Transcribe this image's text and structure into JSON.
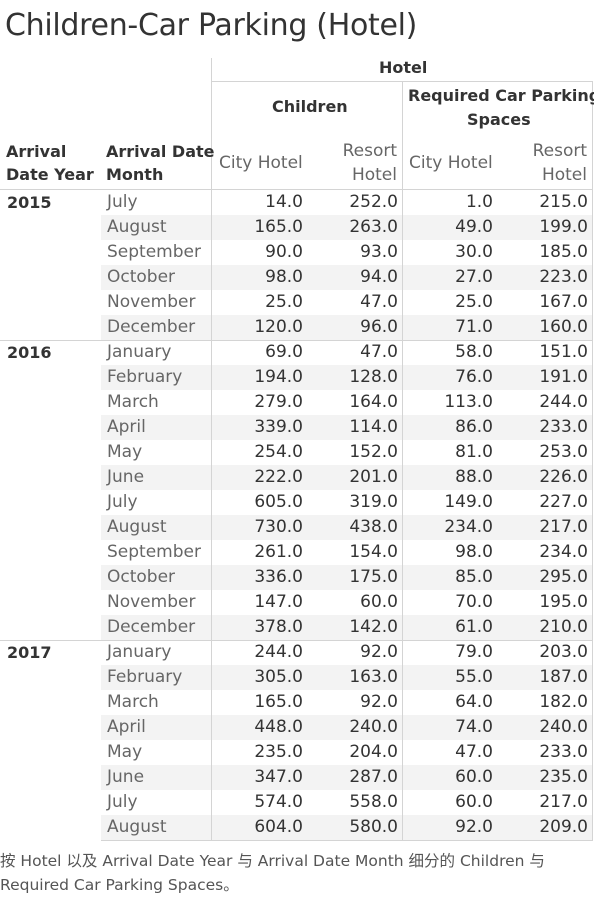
{
  "title": "Children-Car Parking (Hotel)",
  "header": {
    "hotel": "Hotel",
    "children": "Children",
    "parking_l1": "Required Car Parking",
    "parking_l2": "Spaces",
    "year_l1": "Arrival",
    "year_l2": "Date Year",
    "month_l1": "Arrival Date",
    "month_l2": "Month",
    "city": "City Hotel",
    "resort_l1": "Resort",
    "resort_l2": "Hotel"
  },
  "chart_data": {
    "type": "table",
    "columns": [
      "Children City Hotel",
      "Children Resort Hotel",
      "Required Car Parking Spaces City Hotel",
      "Required Car Parking Spaces Resort Hotel"
    ],
    "rows": [
      {
        "year": "2015",
        "month": "July",
        "values": [
          "14.0",
          "252.0",
          "1.0",
          "215.0"
        ]
      },
      {
        "year": "",
        "month": "August",
        "values": [
          "165.0",
          "263.0",
          "49.0",
          "199.0"
        ]
      },
      {
        "year": "",
        "month": "September",
        "values": [
          "90.0",
          "93.0",
          "30.0",
          "185.0"
        ]
      },
      {
        "year": "",
        "month": "October",
        "values": [
          "98.0",
          "94.0",
          "27.0",
          "223.0"
        ]
      },
      {
        "year": "",
        "month": "November",
        "values": [
          "25.0",
          "47.0",
          "25.0",
          "167.0"
        ]
      },
      {
        "year": "",
        "month": "December",
        "values": [
          "120.0",
          "96.0",
          "71.0",
          "160.0"
        ]
      },
      {
        "year": "2016",
        "month": "January",
        "values": [
          "69.0",
          "47.0",
          "58.0",
          "151.0"
        ]
      },
      {
        "year": "",
        "month": "February",
        "values": [
          "194.0",
          "128.0",
          "76.0",
          "191.0"
        ]
      },
      {
        "year": "",
        "month": "March",
        "values": [
          "279.0",
          "164.0",
          "113.0",
          "244.0"
        ]
      },
      {
        "year": "",
        "month": "April",
        "values": [
          "339.0",
          "114.0",
          "86.0",
          "233.0"
        ]
      },
      {
        "year": "",
        "month": "May",
        "values": [
          "254.0",
          "152.0",
          "81.0",
          "253.0"
        ]
      },
      {
        "year": "",
        "month": "June",
        "values": [
          "222.0",
          "201.0",
          "88.0",
          "226.0"
        ]
      },
      {
        "year": "",
        "month": "July",
        "values": [
          "605.0",
          "319.0",
          "149.0",
          "227.0"
        ]
      },
      {
        "year": "",
        "month": "August",
        "values": [
          "730.0",
          "438.0",
          "234.0",
          "217.0"
        ]
      },
      {
        "year": "",
        "month": "September",
        "values": [
          "261.0",
          "154.0",
          "98.0",
          "234.0"
        ]
      },
      {
        "year": "",
        "month": "October",
        "values": [
          "336.0",
          "175.0",
          "85.0",
          "295.0"
        ]
      },
      {
        "year": "",
        "month": "November",
        "values": [
          "147.0",
          "60.0",
          "70.0",
          "195.0"
        ]
      },
      {
        "year": "",
        "month": "December",
        "values": [
          "378.0",
          "142.0",
          "61.0",
          "210.0"
        ]
      },
      {
        "year": "2017",
        "month": "January",
        "values": [
          "244.0",
          "92.0",
          "79.0",
          "203.0"
        ]
      },
      {
        "year": "",
        "month": "February",
        "values": [
          "305.0",
          "163.0",
          "55.0",
          "187.0"
        ]
      },
      {
        "year": "",
        "month": "March",
        "values": [
          "165.0",
          "92.0",
          "64.0",
          "182.0"
        ]
      },
      {
        "year": "",
        "month": "April",
        "values": [
          "448.0",
          "240.0",
          "74.0",
          "240.0"
        ]
      },
      {
        "year": "",
        "month": "May",
        "values": [
          "235.0",
          "204.0",
          "47.0",
          "233.0"
        ]
      },
      {
        "year": "",
        "month": "June",
        "values": [
          "347.0",
          "287.0",
          "60.0",
          "235.0"
        ]
      },
      {
        "year": "",
        "month": "July",
        "values": [
          "574.0",
          "558.0",
          "60.0",
          "217.0"
        ]
      },
      {
        "year": "",
        "month": "August",
        "values": [
          "604.0",
          "580.0",
          "92.0",
          "209.0"
        ]
      }
    ]
  },
  "caption": "按 Hotel 以及 Arrival Date Year 与 Arrival Date Month 细分的 Children 与 Required Car Parking Spaces。"
}
